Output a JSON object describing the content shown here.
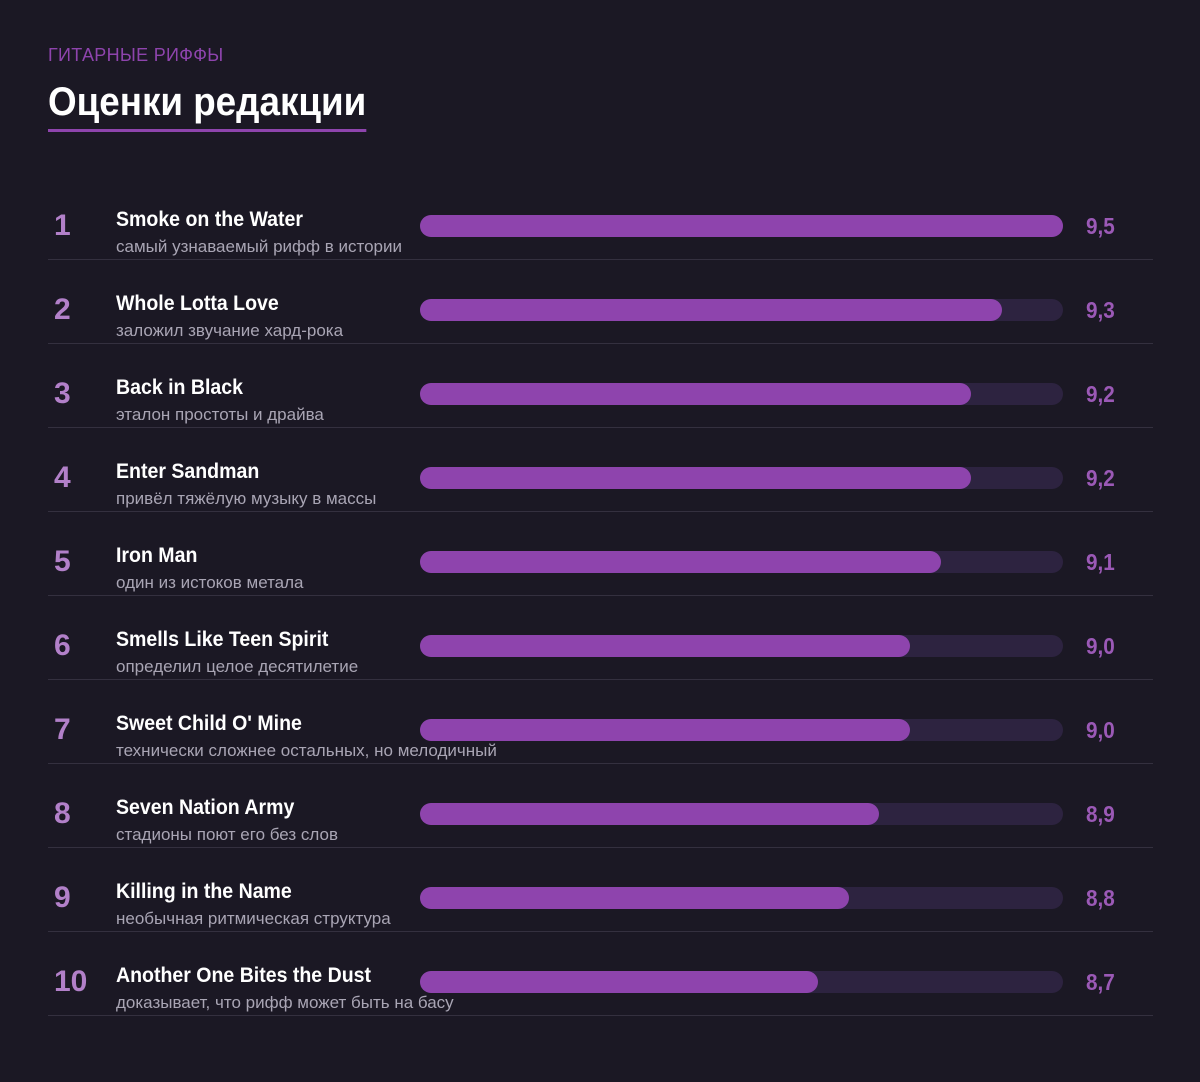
{
  "header": {
    "kicker": "ГИТАРНЫЕ РИФФЫ",
    "title": "Оценки редакции"
  },
  "colors": {
    "background": "#1b1824",
    "accent": "#8e44ad",
    "track": "#2d2340"
  },
  "chart_data": {
    "type": "bar",
    "orientation": "horizontal",
    "title": "Оценки редакции",
    "xlim": [
      7.4,
      9.5
    ],
    "grid": false,
    "items": [
      {
        "rank": "1",
        "name": "Smoke on the Water",
        "description": "самый узнаваемый рифф в истории",
        "value": 9.5,
        "label": "9,5"
      },
      {
        "rank": "2",
        "name": "Whole Lotta Love",
        "description": "заложил звучание хард-рока",
        "value": 9.3,
        "label": "9,3"
      },
      {
        "rank": "3",
        "name": "Back in Black",
        "description": "эталон простоты и драйва",
        "value": 9.2,
        "label": "9,2"
      },
      {
        "rank": "4",
        "name": "Enter Sandman",
        "description": "привёл тяжёлую музыку в массы",
        "value": 9.2,
        "label": "9,2"
      },
      {
        "rank": "5",
        "name": "Iron Man",
        "description": "один из истоков метала",
        "value": 9.1,
        "label": "9,1"
      },
      {
        "rank": "6",
        "name": "Smells Like Teen Spirit",
        "description": "определил целое десятилетие",
        "value": 9.0,
        "label": "9,0"
      },
      {
        "rank": "7",
        "name": "Sweet Child O' Mine",
        "description": "технически сложнее остальных, но мелодичный",
        "value": 9.0,
        "label": "9,0"
      },
      {
        "rank": "8",
        "name": "Seven Nation Army",
        "description": "стадионы поют его без слов",
        "value": 8.9,
        "label": "8,9"
      },
      {
        "rank": "9",
        "name": "Killing in the Name",
        "description": "необычная ритмическая структура",
        "value": 8.8,
        "label": "8,8"
      },
      {
        "rank": "10",
        "name": "Another One Bites the Dust",
        "description": "доказывает, что рифф может быть на басу",
        "value": 8.7,
        "label": "8,7"
      }
    ]
  }
}
